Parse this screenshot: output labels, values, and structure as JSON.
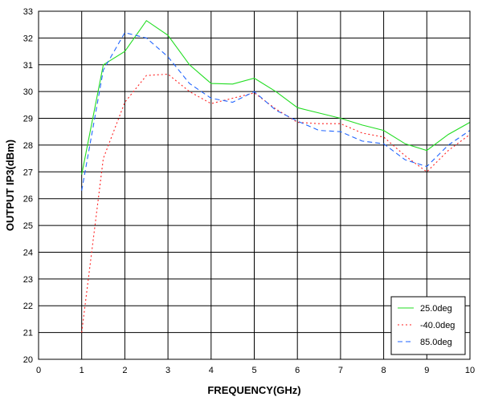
{
  "chart_data": {
    "type": "line",
    "title": "",
    "xlabel": "FREQUENCY(GHz)",
    "ylabel": "OUTPUT IP3(dBm)",
    "xlim": [
      0,
      10
    ],
    "ylim": [
      20,
      33
    ],
    "xticks": [
      0,
      1,
      2,
      3,
      4,
      5,
      6,
      7,
      8,
      9,
      10
    ],
    "yticks": [
      20,
      21,
      22,
      23,
      24,
      25,
      26,
      27,
      28,
      29,
      30,
      31,
      32,
      33
    ],
    "grid": true,
    "legend_position": "bottom-right",
    "series": [
      {
        "name": "25.0deg",
        "color": "#22dd22",
        "dash": "solid",
        "x": [
          1,
          1.5,
          2,
          2.5,
          3,
          3.5,
          4,
          4.5,
          5,
          5.5,
          6,
          6.5,
          7,
          7.5,
          8,
          8.5,
          9,
          9.5,
          10
        ],
        "y": [
          26.9,
          31.0,
          31.5,
          32.65,
          32.1,
          31.0,
          30.3,
          30.28,
          30.5,
          30.0,
          29.4,
          29.2,
          29.0,
          28.75,
          28.55,
          28.05,
          27.8,
          28.4,
          28.85
        ]
      },
      {
        "name": "-40.0deg",
        "color": "#ff2222",
        "dash": "dotted",
        "x": [
          1,
          1.5,
          2,
          2.5,
          3,
          3.5,
          4,
          4.5,
          5,
          5.5,
          6,
          6.5,
          7,
          7.5,
          8,
          8.5,
          9,
          9.5,
          10
        ],
        "y": [
          21.0,
          27.5,
          29.6,
          30.6,
          30.65,
          30.0,
          29.55,
          29.75,
          29.95,
          29.35,
          28.85,
          28.8,
          28.8,
          28.45,
          28.3,
          27.6,
          27.0,
          27.8,
          28.4
        ]
      },
      {
        "name": "85.0deg",
        "color": "#2266ff",
        "dash": "dashed",
        "x": [
          1,
          1.5,
          2,
          2.5,
          3,
          3.5,
          4,
          4.5,
          5,
          5.5,
          6,
          6.5,
          7,
          7.5,
          8,
          8.5,
          9,
          9.5,
          10
        ],
        "y": [
          26.3,
          30.8,
          32.2,
          32.0,
          31.3,
          30.3,
          29.75,
          29.6,
          30.0,
          29.3,
          28.9,
          28.55,
          28.5,
          28.15,
          28.05,
          27.45,
          27.2,
          28.0,
          28.55
        ]
      }
    ]
  }
}
